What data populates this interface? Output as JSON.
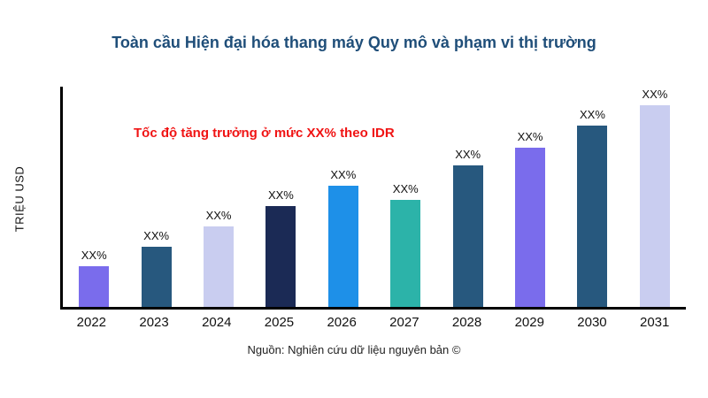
{
  "title": "Toàn cầu Hiện đại hóa thang máy Quy mô và phạm vi thị trường",
  "y_axis_label": "TRIỆU USD",
  "annotation": "Tốc độ tăng trưởng ở mức XX% theo IDR",
  "source": "Nguồn: Nghiên cứu dữ liệu nguyên bản ©",
  "accent_colors": {
    "title": "#1f4e79",
    "annotation": "#f01414"
  },
  "chart_data": {
    "type": "bar",
    "title": "Toàn cầu Hiện đại hóa thang máy Quy mô và phạm vi thị trường",
    "xlabel": "",
    "ylabel": "TRIỆU USD",
    "categories": [
      "2022",
      "2023",
      "2024",
      "2025",
      "2026",
      "2027",
      "2028",
      "2029",
      "2030",
      "2031"
    ],
    "values": [
      20,
      30,
      40,
      50,
      60,
      53,
      70,
      79,
      90,
      100
    ],
    "bar_labels": [
      "XX%",
      "XX%",
      "XX%",
      "XX%",
      "XX%",
      "XX%",
      "XX%",
      "XX%",
      "XX%",
      "XX%"
    ],
    "colors": [
      "#7a6cec",
      "#27587e",
      "#c9cdf0",
      "#1b2a55",
      "#1e90e8",
      "#2cb3a9",
      "#27587e",
      "#7a6cec",
      "#27587e",
      "#c9cdf0"
    ],
    "ylim": [
      0,
      100
    ],
    "grid": false,
    "legend": "none",
    "annotations": [
      "Tốc độ tăng trưởng ở mức XX% theo IDR"
    ]
  }
}
